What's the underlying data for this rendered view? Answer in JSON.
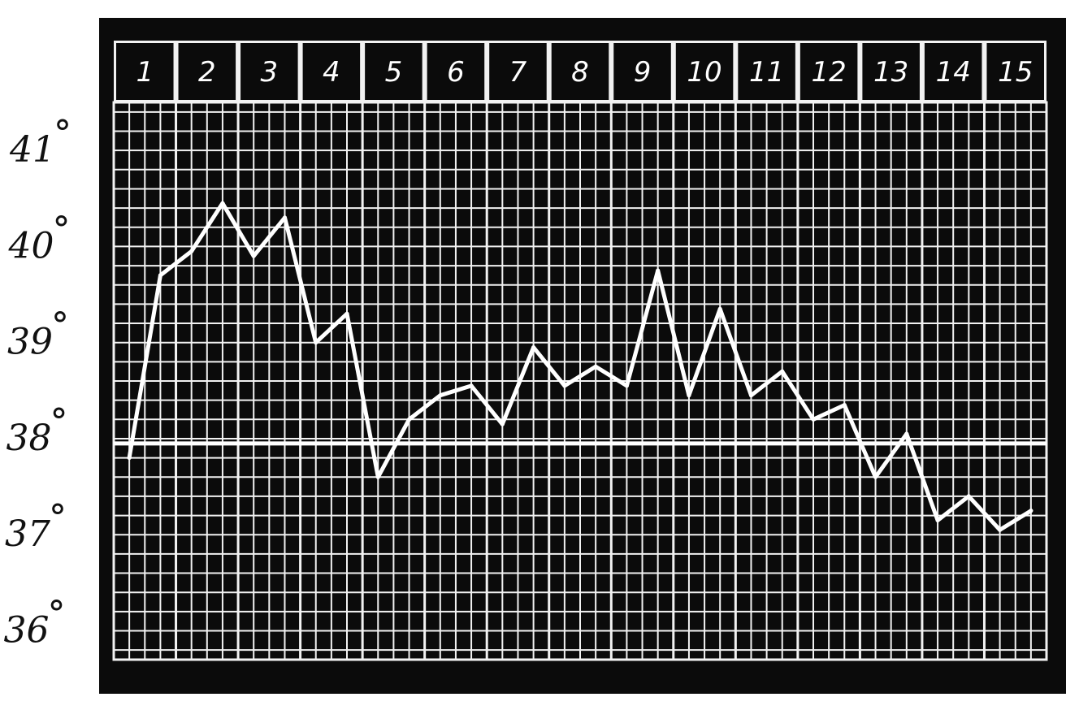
{
  "chart_data": {
    "type": "line",
    "title": "",
    "xlabel": "",
    "ylabel": "",
    "day_labels": [
      "1",
      "2",
      "3",
      "4",
      "5",
      "6",
      "7",
      "8",
      "9",
      "10",
      "11",
      "12",
      "13",
      "14",
      "15"
    ],
    "y_tick_labels": [
      {
        "value": 41,
        "label": "41"
      },
      {
        "value": 40,
        "label": "40"
      },
      {
        "value": 39,
        "label": "39"
      },
      {
        "value": 38,
        "label": "38"
      },
      {
        "value": 37,
        "label": "37"
      },
      {
        "value": 36,
        "label": "36"
      }
    ],
    "ylim": [
      35.7,
      41.5
    ],
    "xlim": [
      0.5,
      15.5
    ],
    "reference_line": 37.95,
    "grid": true,
    "series": [
      {
        "x": [
          0.75,
          1.25,
          1.75,
          2.25,
          2.75,
          3.25,
          3.75,
          4.25,
          4.75,
          5.25,
          5.75,
          6.25,
          6.75,
          7.25,
          7.75,
          8.25,
          8.75,
          9.25,
          9.75,
          10.25,
          10.75,
          11.25,
          11.75,
          12.25,
          12.75,
          13.25,
          13.75,
          14.25,
          14.75,
          15.25
        ],
        "values": [
          37.8,
          39.7,
          39.95,
          40.45,
          39.9,
          40.3,
          39.0,
          39.3,
          37.6,
          38.2,
          38.45,
          38.55,
          38.15,
          38.95,
          38.55,
          38.75,
          38.55,
          39.75,
          38.45,
          39.35,
          38.45,
          38.7,
          38.2,
          38.35,
          37.6,
          38.05,
          37.15,
          37.4,
          37.05,
          37.25
        ]
      }
    ],
    "colors": {
      "background": "#0b0b0b",
      "grid": "#f2f2f2",
      "line": "#ffffff",
      "text": "#111111"
    }
  }
}
